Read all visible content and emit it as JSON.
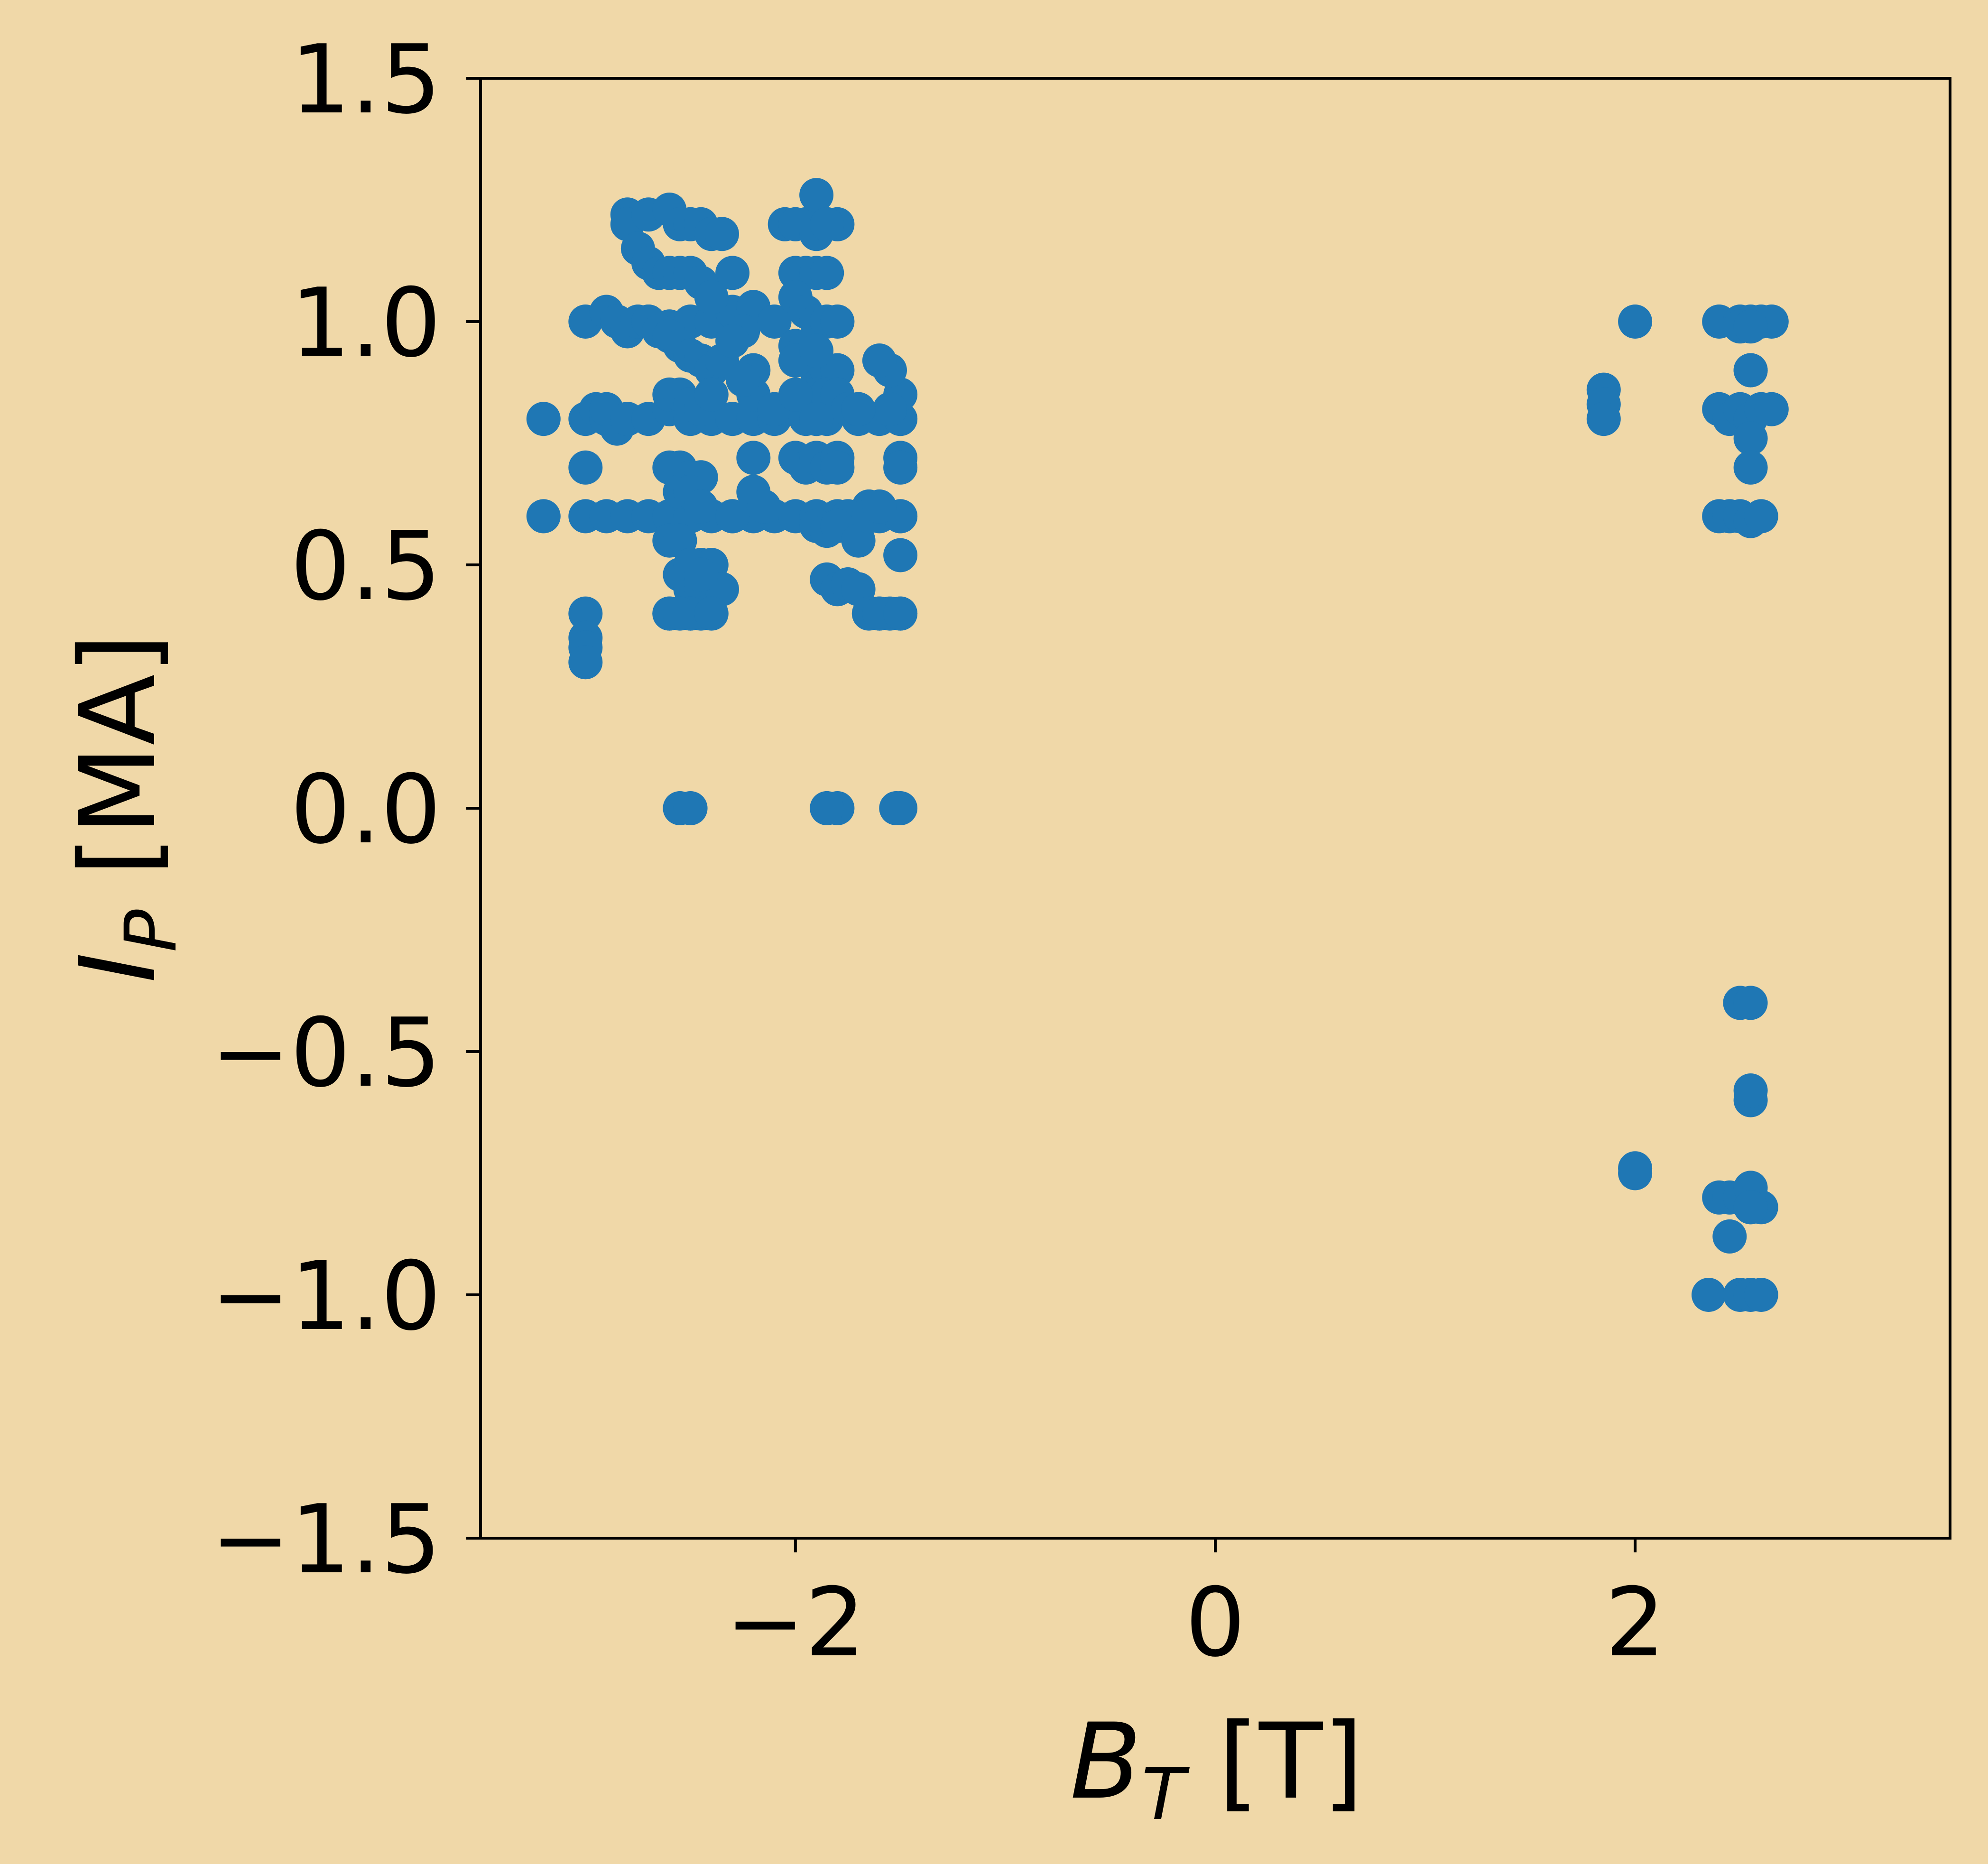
{
  "colors": {
    "background": "#f0d8a8",
    "points": "#1f77b4",
    "axis": "#000000"
  },
  "chart_data": {
    "type": "scatter",
    "title": "",
    "xlabel": {
      "main": "B",
      "sub": "T",
      "unit": "[T]"
    },
    "ylabel": {
      "main": "I",
      "sub": "P",
      "unit": "[MA]"
    },
    "xlim": [
      -3.5,
      3.5
    ],
    "ylim": [
      -1.5,
      1.5
    ],
    "xticks": [
      -2,
      0,
      2
    ],
    "xtick_labels": [
      "−2",
      "0",
      "2"
    ],
    "yticks": [
      -1.5,
      -1.0,
      -0.5,
      0.0,
      0.5,
      1.0,
      1.5
    ],
    "ytick_labels": [
      "−1.5",
      "−1.0",
      "−0.5",
      "0.0",
      "0.5",
      "1.0",
      "1.5"
    ],
    "grid": false,
    "legend": false,
    "series": [
      {
        "marker": "circle",
        "x": [
          -3.2,
          -3.2,
          -3.0,
          -3.0,
          -3.0,
          -3.0,
          -3.0,
          -3.0,
          -3.0,
          -3.0,
          -2.95,
          -2.9,
          -2.85,
          -2.8,
          -2.9,
          -2.85,
          -2.8,
          -2.7,
          -2.6,
          -2.5,
          -2.4,
          -2.3,
          -2.2,
          -2.1,
          -2.9,
          -2.8,
          -2.7,
          -2.6,
          -2.5,
          -2.4,
          -2.3,
          -2.2,
          -2.1,
          -2.0,
          -1.9,
          -1.8,
          -1.7,
          -1.6,
          -1.5,
          -2.9,
          -2.8,
          -2.7,
          -2.6,
          -2.5,
          -2.4,
          -2.3,
          -2.2,
          -2.1,
          -1.9,
          -1.8,
          -1.7,
          -1.6,
          -1.5,
          -2.8,
          -2.8,
          -2.7,
          -2.6,
          -2.55,
          -2.5,
          -2.45,
          -2.4,
          -2.35,
          -2.3,
          -2.75,
          -2.7,
          -2.65,
          -2.6,
          -2.55,
          -2.5,
          -2.45,
          -2.4,
          -2.75,
          -2.7,
          -2.65,
          -2.6,
          -2.55,
          -2.5,
          -2.45,
          -2.4,
          -2.35,
          -2.6,
          -2.55,
          -2.5,
          -2.45,
          -2.4,
          -2.6,
          -2.55,
          -2.5,
          -2.45,
          -2.6,
          -2.55,
          -2.5,
          -2.45,
          -2.4,
          -2.55,
          -2.5,
          -2.45,
          -2.55,
          -2.5,
          -2.45,
          -2.6,
          -2.5,
          -2.45,
          -2.35,
          -2.3,
          -2.2,
          -2.15,
          -2.2,
          -2.2,
          -2.2,
          -2.25,
          -2.3,
          -2.25,
          -2.1,
          -2.05,
          -2.0,
          -1.95,
          -1.9,
          -1.85,
          -1.8,
          -2.0,
          -1.95,
          -1.9,
          -1.85,
          -2.0,
          -1.95,
          -1.9,
          -1.85,
          -1.8,
          -2.0,
          -1.95,
          -1.9,
          -1.85,
          -1.8,
          -1.95,
          -1.9,
          -1.85,
          -1.8,
          -1.9,
          -1.85,
          -2.0,
          -1.95,
          -1.9,
          -1.85,
          -1.8,
          -1.9,
          -1.85,
          -1.85,
          -1.8,
          -1.75,
          -1.7,
          -1.65,
          -1.6,
          -1.55,
          -1.5,
          -1.5,
          -1.5,
          -1.5,
          -1.5,
          -1.5,
          -1.5,
          -1.55,
          -1.6,
          -1.65,
          -1.75,
          -1.8,
          -1.7,
          -1.65,
          -1.6,
          -1.55,
          -1.85,
          -1.9,
          -1.95,
          -2.0,
          -1.75,
          -1.7,
          -1.9,
          -2.0,
          -1.9,
          -1.8,
          -1.7,
          -1.6,
          -1.5,
          -2.5,
          -2.6,
          -2.55,
          -2.4,
          -2.5,
          -2.45,
          -2.55,
          -2.5,
          -1.85,
          -1.8,
          -1.85,
          -1.5,
          -1.52,
          1.85,
          1.85,
          1.85,
          2.0,
          2.4,
          2.5,
          2.55,
          2.6,
          2.65,
          2.5,
          2.55,
          2.4,
          2.45,
          2.5,
          2.55,
          2.6,
          2.65,
          2.55,
          2.55,
          2.4,
          2.45,
          2.5,
          2.55,
          2.6,
          2.55,
          2.55,
          2.5,
          2.55,
          2.55,
          2.55,
          2.0,
          2.0,
          2.4,
          2.45,
          2.5,
          2.55,
          2.6,
          2.55,
          2.35,
          2.5,
          2.55,
          2.6,
          2.45,
          2.55
        ],
        "y": [
          0.8,
          0.6,
          1.0,
          0.8,
          0.7,
          0.6,
          0.4,
          0.35,
          0.33,
          0.3,
          0.82,
          0.8,
          0.78,
          0.8,
          1.02,
          1.0,
          0.98,
          1.0,
          0.99,
          1.0,
          1.0,
          1.02,
          1.03,
          1.0,
          0.6,
          0.6,
          0.6,
          0.6,
          0.6,
          0.6,
          0.6,
          0.6,
          0.6,
          0.6,
          0.6,
          0.6,
          0.6,
          0.6,
          0.6,
          0.82,
          0.8,
          0.8,
          0.82,
          0.8,
          0.8,
          0.8,
          0.8,
          0.8,
          0.82,
          0.82,
          0.8,
          0.8,
          0.8,
          1.22,
          1.2,
          1.22,
          1.23,
          1.2,
          1.2,
          1.2,
          1.18,
          1.18,
          1.1,
          1.15,
          1.12,
          1.1,
          1.1,
          1.1,
          1.1,
          1.08,
          1.05,
          1.0,
          1.0,
          0.98,
          0.97,
          0.95,
          0.93,
          0.92,
          0.9,
          0.92,
          0.85,
          0.85,
          0.83,
          0.82,
          0.85,
          0.7,
          0.7,
          0.68,
          0.68,
          0.55,
          0.55,
          0.5,
          0.5,
          0.5,
          0.65,
          0.65,
          0.62,
          0.48,
          0.45,
          0.45,
          0.4,
          0.4,
          0.4,
          0.45,
          0.6,
          0.65,
          0.62,
          0.72,
          0.85,
          0.9,
          0.98,
          0.96,
          0.88,
          0.82,
          1.2,
          1.2,
          1.2,
          1.18,
          1.2,
          1.2,
          1.1,
          1.1,
          1.1,
          1.1,
          1.05,
          1.02,
          1.0,
          1.0,
          1.0,
          0.95,
          0.95,
          0.9,
          0.9,
          0.9,
          0.85,
          0.85,
          0.85,
          0.85,
          1.26,
          1.2,
          0.72,
          0.7,
          0.72,
          0.7,
          0.72,
          0.58,
          0.57,
          0.47,
          0.45,
          0.46,
          0.45,
          0.4,
          0.4,
          0.4,
          0.4,
          0.52,
          0.6,
          0.72,
          0.7,
          0.8,
          0.85,
          0.9,
          0.92,
          0.62,
          0.6,
          0.58,
          0.55,
          0.6,
          0.62,
          0.82,
          0.8,
          0.8,
          0.8,
          0.85,
          0.82,
          0.82,
          0.8,
          0.92,
          0.94,
          0.7,
          0.82,
          0.4,
          0.4,
          0.4,
          0.4,
          0.4,
          0.4,
          0.5,
          0.48,
          0.0,
          0.0,
          0.0,
          0.0,
          0.0,
          0.0,
          0.0,
          0.86,
          0.83,
          0.8,
          1.0,
          1.0,
          1.0,
          1.0,
          1.0,
          1.0,
          0.99,
          0.99,
          0.82,
          0.8,
          0.82,
          0.8,
          0.82,
          0.82,
          0.9,
          0.9,
          0.6,
          0.6,
          0.6,
          0.59,
          0.6,
          0.76,
          0.7,
          -0.4,
          -0.4,
          -0.6,
          -0.58,
          -0.74,
          -0.75,
          -0.8,
          -0.8,
          -0.8,
          -0.82,
          -0.82,
          -0.78,
          -1.0,
          -1.0,
          -1.0,
          -1.0,
          -0.88,
          -0.82
        ]
      }
    ]
  }
}
